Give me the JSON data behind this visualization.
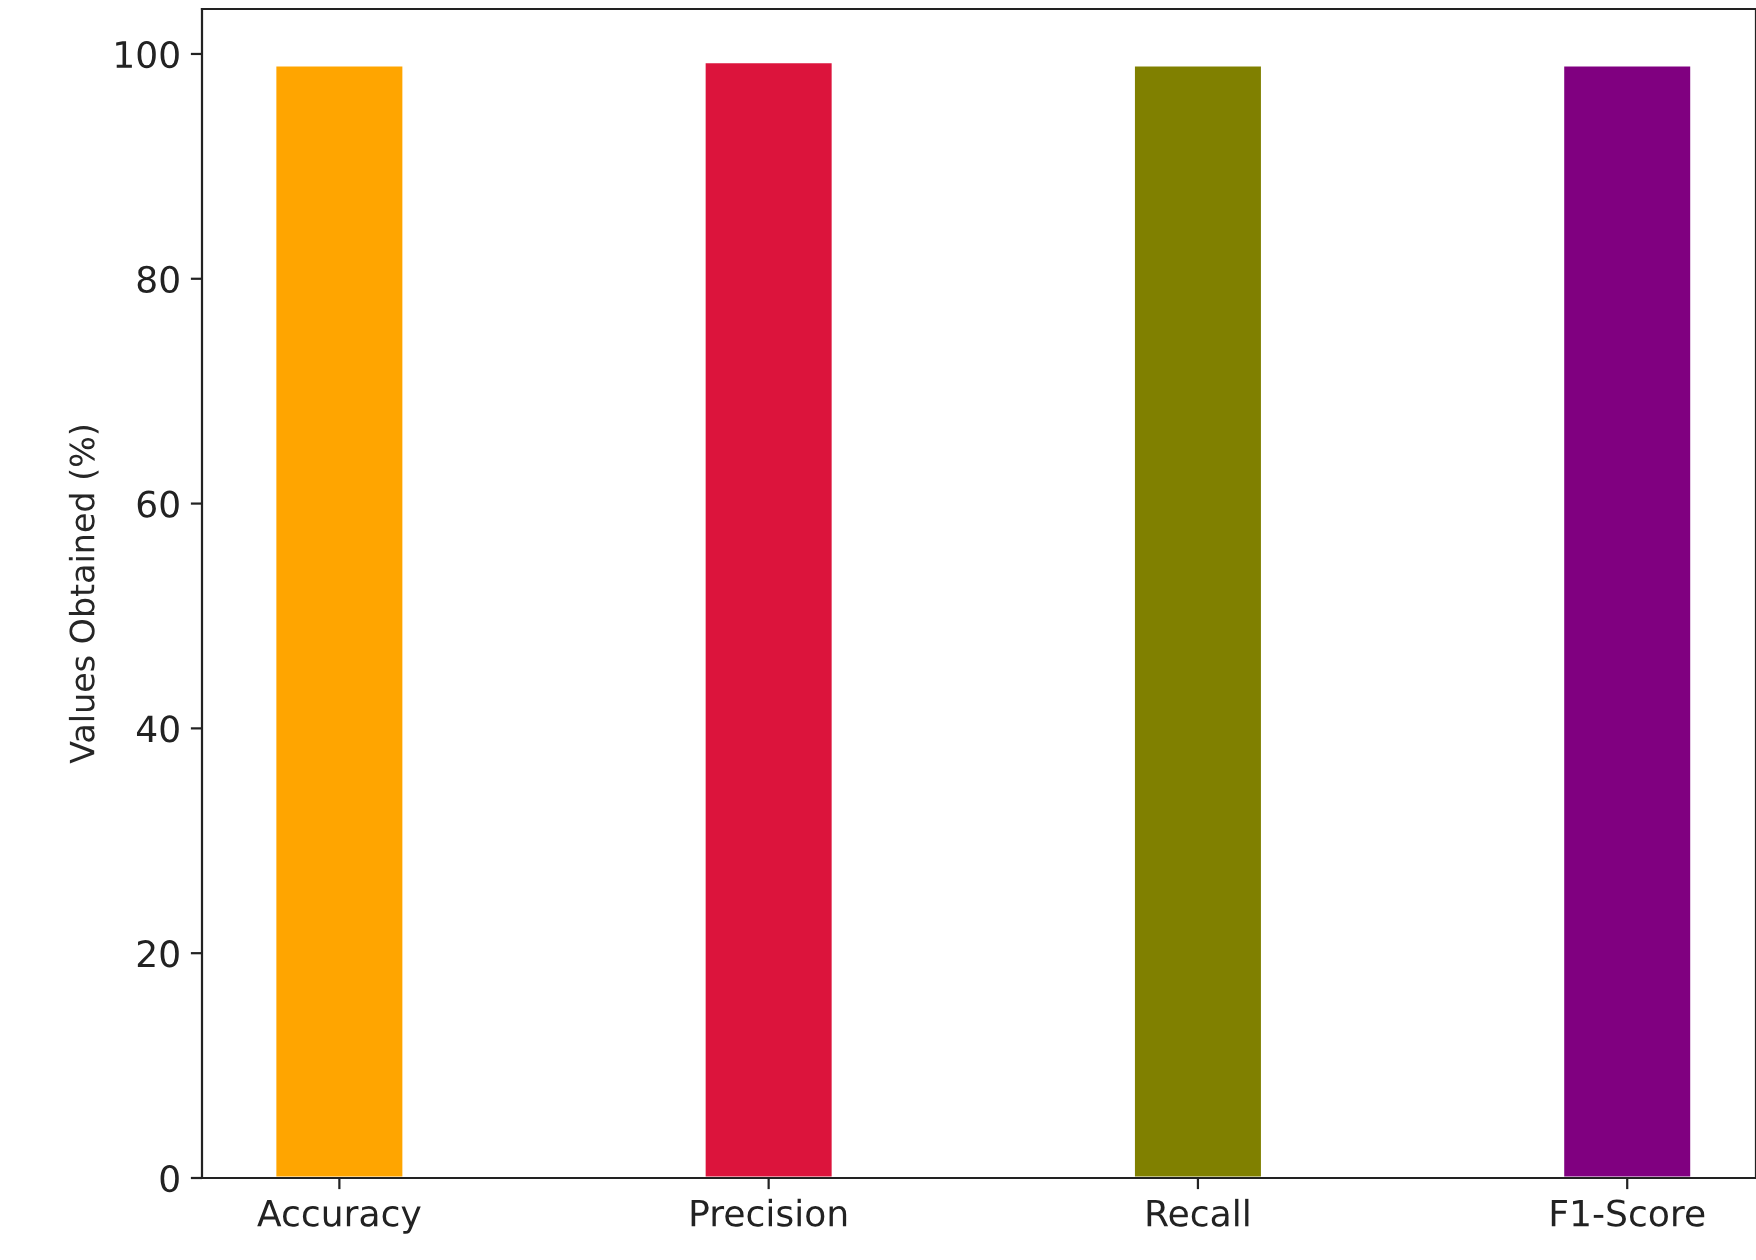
{
  "chart_data": {
    "type": "bar",
    "ylabel": "Values Obtained (%)",
    "categories": [
      "Accuracy",
      "Precision",
      "Recall",
      "F1-Score"
    ],
    "values": [
      99.0,
      99.3,
      99.0,
      99.0
    ],
    "colors": [
      "#ffa500",
      "#dc143c",
      "#808000",
      "#800080"
    ],
    "ylim": [
      0,
      104
    ],
    "yticks": [
      0,
      20,
      40,
      60,
      80,
      100
    ],
    "grid": false
  }
}
